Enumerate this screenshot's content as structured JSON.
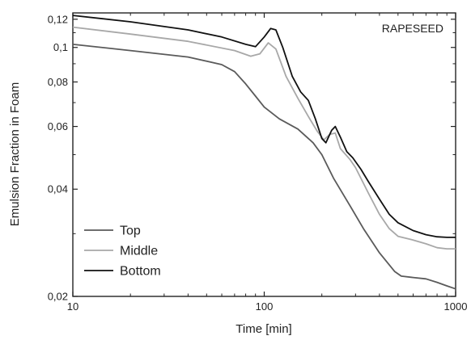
{
  "chart_data": {
    "type": "line",
    "annotation": "RAPESEED",
    "xlabel": "Time [min]",
    "ylabel": "Emulsion Fraction in Foam",
    "x_scale": "log",
    "y_scale": "log",
    "xlim": [
      10,
      1000
    ],
    "ylim": [
      0.02,
      0.125
    ],
    "x_ticks": [
      {
        "value": 10,
        "label": "10"
      },
      {
        "value": 100,
        "label": "100"
      },
      {
        "value": 1000,
        "label": "1000"
      }
    ],
    "y_ticks": [
      {
        "value": 0.02,
        "label": "0,02"
      },
      {
        "value": 0.04,
        "label": "0,04"
      },
      {
        "value": 0.06,
        "label": "0,06"
      },
      {
        "value": 0.08,
        "label": "0,08"
      },
      {
        "value": 0.1,
        "label": "0,1"
      },
      {
        "value": 0.12,
        "label": "0,12"
      }
    ],
    "legend_position": "bottom-left",
    "series": [
      {
        "name": "Top",
        "color": "#5a5a5a",
        "points": [
          [
            10,
            0.102
          ],
          [
            20,
            0.098
          ],
          [
            40,
            0.094
          ],
          [
            60,
            0.0895
          ],
          [
            70,
            0.0855
          ],
          [
            80,
            0.079
          ],
          [
            90,
            0.073
          ],
          [
            100,
            0.068
          ],
          [
            120,
            0.063
          ],
          [
            150,
            0.059
          ],
          [
            180,
            0.054
          ],
          [
            200,
            0.05
          ],
          [
            230,
            0.043
          ],
          [
            280,
            0.036
          ],
          [
            330,
            0.031
          ],
          [
            400,
            0.0265
          ],
          [
            480,
            0.0235
          ],
          [
            520,
            0.0228
          ],
          [
            600,
            0.0226
          ],
          [
            700,
            0.0224
          ],
          [
            800,
            0.0219
          ],
          [
            900,
            0.0214
          ],
          [
            1000,
            0.021
          ]
        ]
      },
      {
        "name": "Middle",
        "color": "#a8a8a8",
        "points": [
          [
            10,
            0.114
          ],
          [
            20,
            0.109
          ],
          [
            40,
            0.104
          ],
          [
            70,
            0.098
          ],
          [
            85,
            0.0945
          ],
          [
            95,
            0.096
          ],
          [
            105,
            0.103
          ],
          [
            115,
            0.099
          ],
          [
            130,
            0.083
          ],
          [
            150,
            0.072
          ],
          [
            170,
            0.064
          ],
          [
            190,
            0.058
          ],
          [
            205,
            0.055
          ],
          [
            220,
            0.057
          ],
          [
            235,
            0.0575
          ],
          [
            250,
            0.052
          ],
          [
            280,
            0.0485
          ],
          [
            300,
            0.046
          ],
          [
            350,
            0.039
          ],
          [
            400,
            0.034
          ],
          [
            450,
            0.031
          ],
          [
            500,
            0.0295
          ],
          [
            600,
            0.0288
          ],
          [
            700,
            0.0281
          ],
          [
            800,
            0.0274
          ],
          [
            900,
            0.0272
          ],
          [
            1000,
            0.0272
          ]
        ]
      },
      {
        "name": "Bottom",
        "color": "#111111",
        "points": [
          [
            10,
            0.123
          ],
          [
            20,
            0.118
          ],
          [
            40,
            0.112
          ],
          [
            60,
            0.107
          ],
          [
            80,
            0.102
          ],
          [
            90,
            0.1005
          ],
          [
            100,
            0.107
          ],
          [
            108,
            0.113
          ],
          [
            115,
            0.112
          ],
          [
            125,
            0.1
          ],
          [
            140,
            0.083
          ],
          [
            155,
            0.075
          ],
          [
            170,
            0.071
          ],
          [
            185,
            0.063
          ],
          [
            200,
            0.0555
          ],
          [
            210,
            0.054
          ],
          [
            225,
            0.0585
          ],
          [
            235,
            0.06
          ],
          [
            250,
            0.056
          ],
          [
            270,
            0.051
          ],
          [
            290,
            0.049
          ],
          [
            320,
            0.0455
          ],
          [
            350,
            0.042
          ],
          [
            400,
            0.0375
          ],
          [
            450,
            0.034
          ],
          [
            500,
            0.0322
          ],
          [
            600,
            0.0306
          ],
          [
            700,
            0.0298
          ],
          [
            800,
            0.0294
          ],
          [
            900,
            0.0293
          ],
          [
            1000,
            0.0293
          ]
        ]
      }
    ]
  }
}
